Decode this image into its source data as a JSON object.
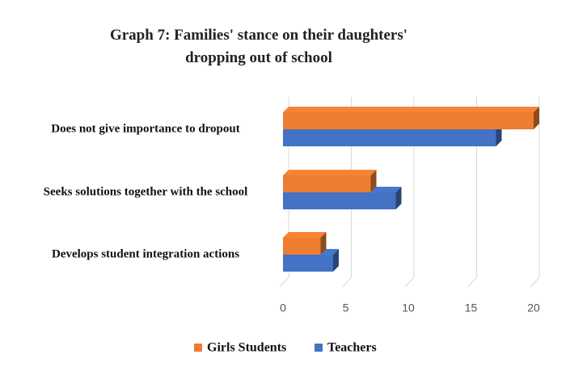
{
  "chart_data": {
    "type": "bar",
    "orientation": "horizontal",
    "title": "Graph 7: Families' stance on their daughters' dropping out of school",
    "categories": [
      "Does not give importance to dropout",
      "Seeks solutions together with the school",
      "Develops student integration actions"
    ],
    "series": [
      {
        "name": "Girls Students",
        "color": "#ed7d31",
        "values": [
          20,
          7,
          3
        ]
      },
      {
        "name": "Teachers",
        "color": "#4472c4",
        "values": [
          17,
          9,
          4
        ]
      }
    ],
    "xlim": [
      0,
      20
    ],
    "xticks": [
      0,
      5,
      10,
      15,
      20
    ],
    "grid": true,
    "legend": "bottom"
  }
}
